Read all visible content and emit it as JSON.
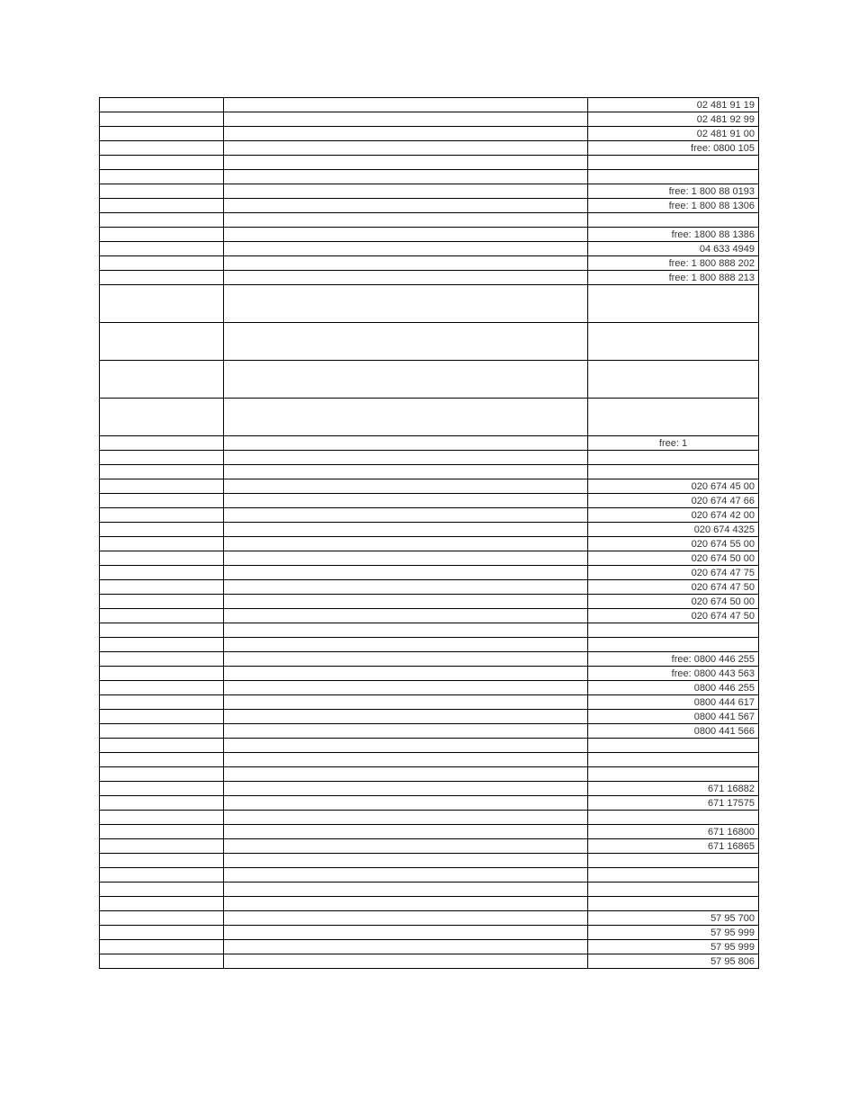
{
  "columns": {
    "a_width": 138,
    "c_width": 190
  },
  "rows": [
    {
      "c": "02 481 91 19"
    },
    {
      "c": "02 481 92 99"
    },
    {
      "c": "02 481 91 00"
    },
    {
      "c": "free: 0800 105"
    },
    {
      "c": ""
    },
    {
      "c": ""
    },
    {
      "c": "free: 1 800 88 0193"
    },
    {
      "c": "free: 1 800 88 1306"
    },
    {
      "c": ""
    },
    {
      "c": "free: 1800 88 1386"
    },
    {
      "c": "04 633 4949"
    },
    {
      "c": "free: 1 800 888 202"
    },
    {
      "c": "free: 1 800 888 213"
    },
    {
      "c": "",
      "tall": true
    },
    {
      "c": "",
      "tall": true
    },
    {
      "c": "",
      "tall": true
    },
    {
      "c": "",
      "tall": true
    },
    {
      "c": "free: 1",
      "center": true
    },
    {
      "c": ""
    },
    {
      "c": ""
    },
    {
      "c": "020 674 45 00"
    },
    {
      "c": "020 674 47 66"
    },
    {
      "c": "020 674 42 00"
    },
    {
      "c": "020 674 4325"
    },
    {
      "c": "020 674 55 00"
    },
    {
      "c": "020 674 50 00"
    },
    {
      "c": "020 674 47 75"
    },
    {
      "c": "020 674 47 50"
    },
    {
      "c": "020 674 50 00"
    },
    {
      "c": "020 674 47 50"
    },
    {
      "c": ""
    },
    {
      "c": ""
    },
    {
      "c": "free: 0800 446 255"
    },
    {
      "c": "free: 0800 443 563"
    },
    {
      "c": "0800 446 255"
    },
    {
      "c": "0800 444 617"
    },
    {
      "c": "0800 441 567"
    },
    {
      "c": "0800 441 566"
    },
    {
      "c": ""
    },
    {
      "c": ""
    },
    {
      "c": ""
    },
    {
      "c": "671 16882"
    },
    {
      "c": "671 17575"
    },
    {
      "c": ""
    },
    {
      "c": "671 16800"
    },
    {
      "c": "671 16865"
    },
    {
      "c": ""
    },
    {
      "c": ""
    },
    {
      "c": ""
    },
    {
      "c": ""
    },
    {
      "c": "57 95 700"
    },
    {
      "c": "57 95  999"
    },
    {
      "c": "57 95 999"
    },
    {
      "c": "57 95 806"
    }
  ]
}
